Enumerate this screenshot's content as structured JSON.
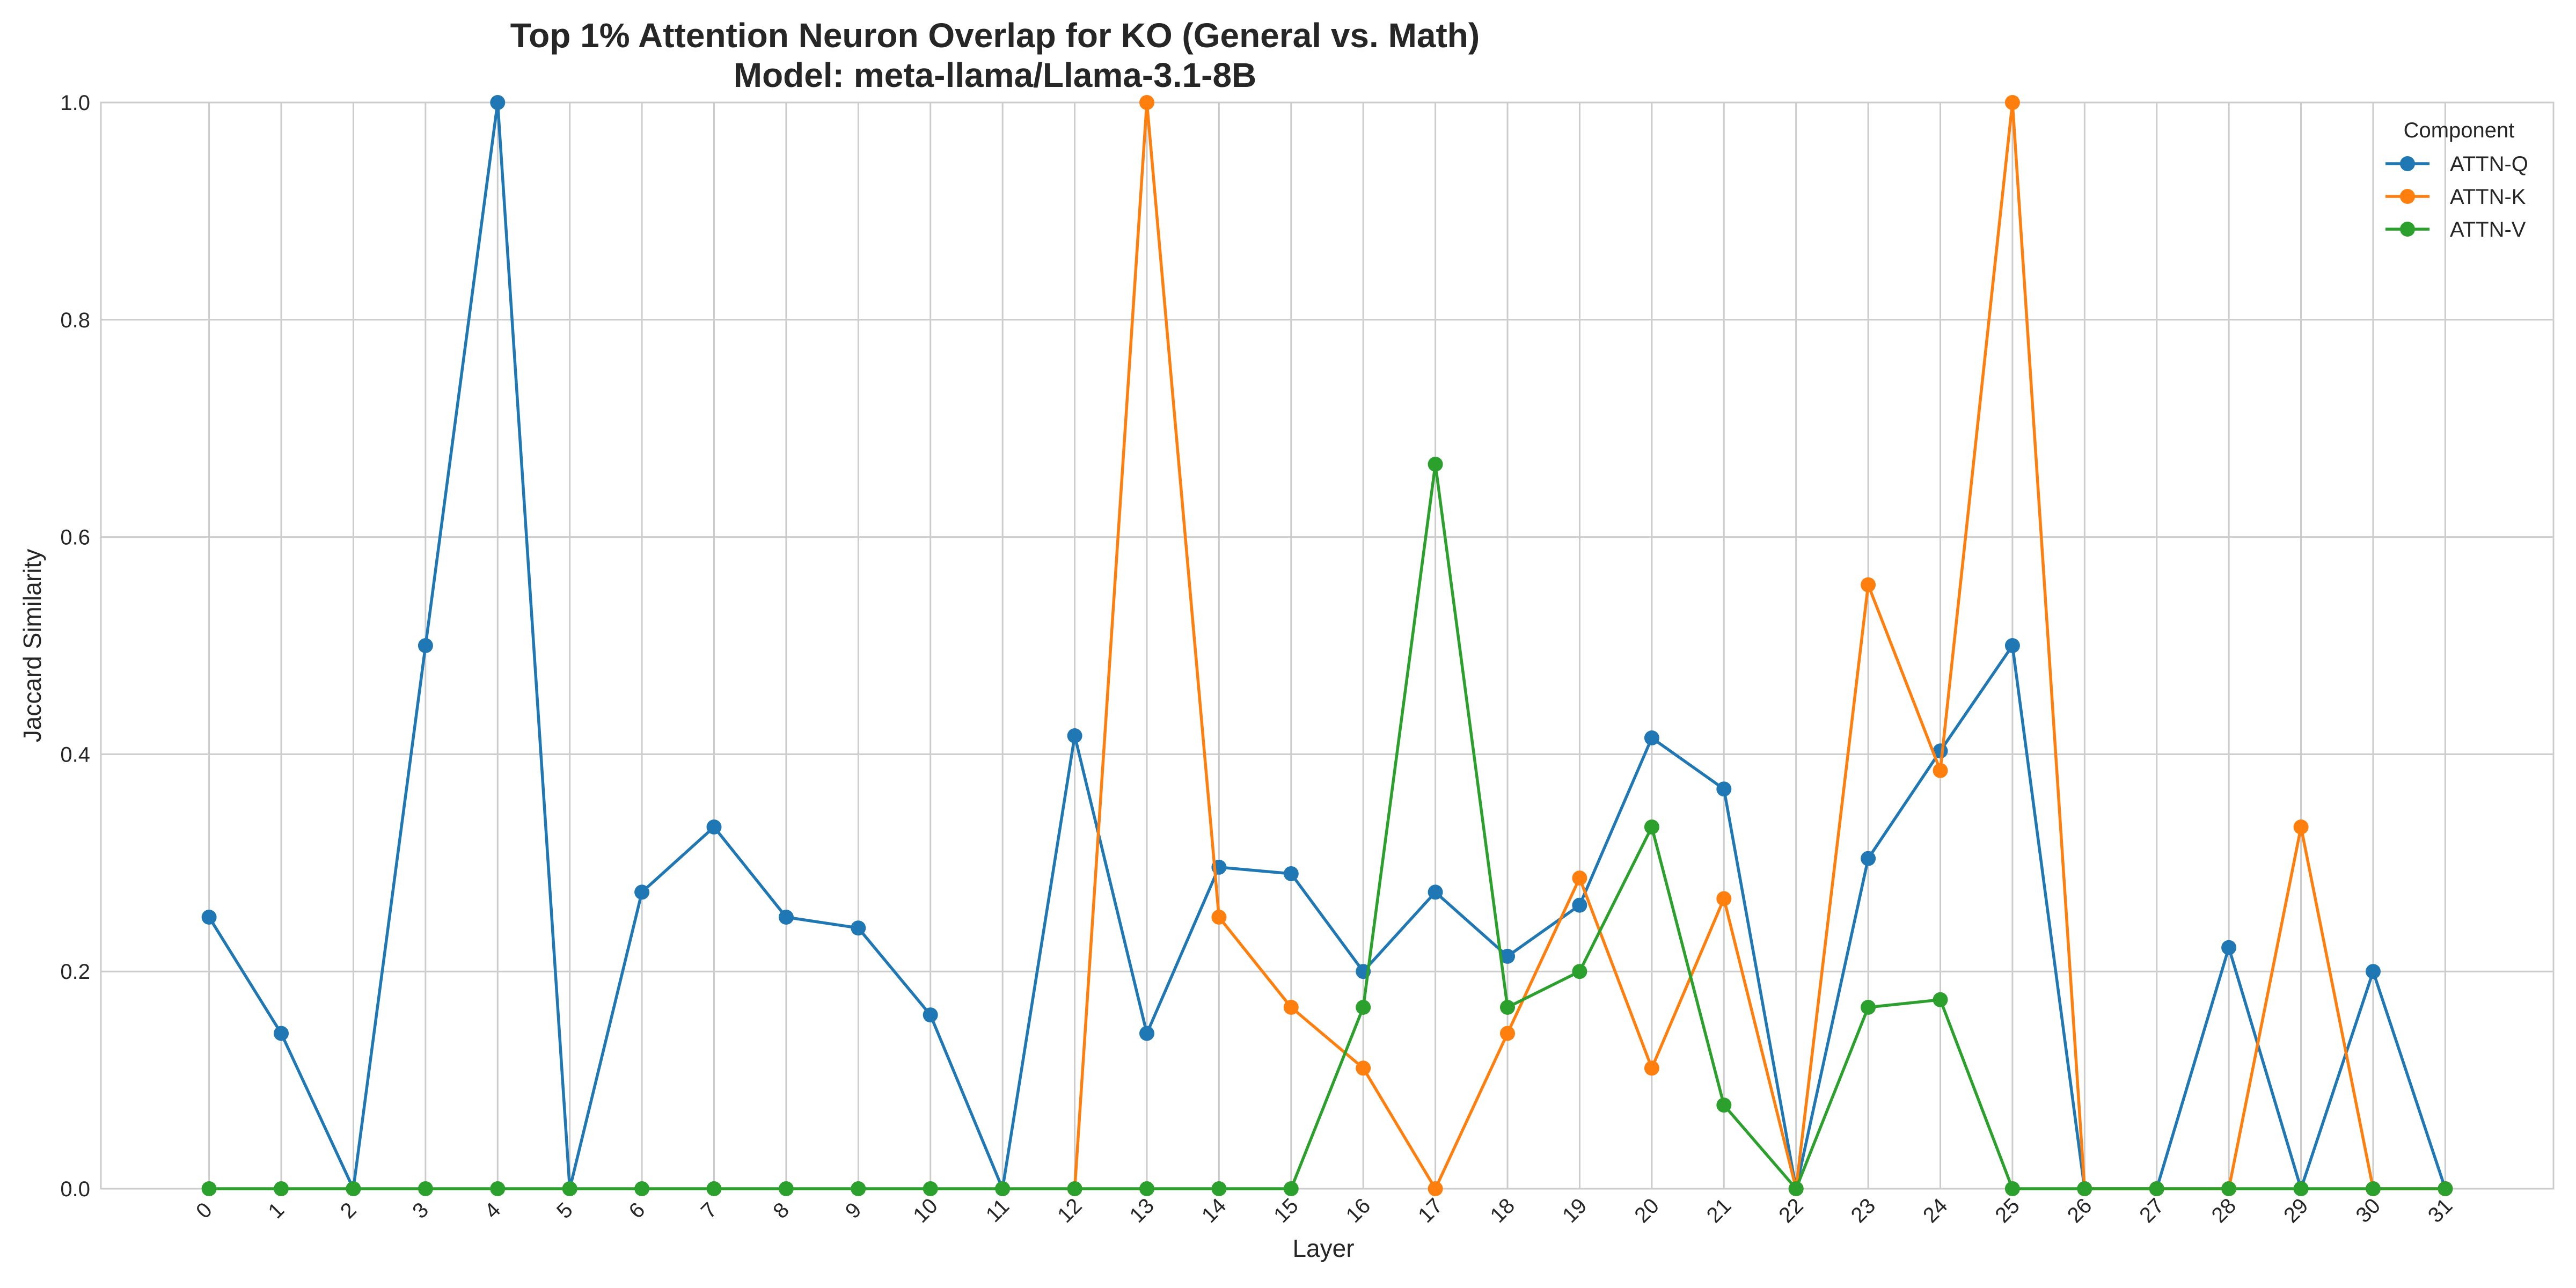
{
  "chart_data": {
    "type": "line",
    "title": "Top 1% Attention Neuron Overlap for KO (General vs. Math)",
    "subtitle": "Model: meta-llama/Llama-3.1-8B",
    "xlabel": "Layer",
    "ylabel": "Jaccard Similarity",
    "ylim": [
      0,
      1
    ],
    "yticks": [
      "0.0",
      "0.2",
      "0.4",
      "0.6",
      "0.8",
      "1.0"
    ],
    "x": [
      0,
      1,
      2,
      3,
      4,
      5,
      6,
      7,
      8,
      9,
      10,
      11,
      12,
      13,
      14,
      15,
      16,
      17,
      18,
      19,
      20,
      21,
      22,
      23,
      24,
      25,
      26,
      27,
      28,
      29,
      30,
      31
    ],
    "grid": true,
    "legend": {
      "title": "Component",
      "placement": "top-right"
    },
    "series": [
      {
        "name": "ATTN-Q",
        "color": "#1f77b4",
        "values": [
          0.25,
          0.143,
          0.0,
          0.5,
          1.0,
          0.0,
          0.273,
          0.333,
          0.25,
          0.24,
          0.16,
          0.0,
          0.417,
          0.143,
          0.296,
          0.29,
          0.2,
          0.273,
          0.214,
          0.261,
          0.415,
          0.368,
          0.0,
          0.304,
          0.403,
          0.5,
          0.0,
          0.0,
          0.222,
          0.0,
          0.2,
          0.0
        ]
      },
      {
        "name": "ATTN-K",
        "color": "#ff7f0e",
        "values": [
          null,
          null,
          null,
          null,
          null,
          null,
          null,
          null,
          null,
          null,
          null,
          null,
          0.0,
          1.0,
          0.25,
          0.167,
          0.111,
          0.0,
          0.143,
          0.286,
          0.111,
          0.267,
          0.0,
          0.556,
          0.385,
          1.0,
          0.0,
          0.0,
          0.0,
          0.333,
          0.0,
          0.0
        ]
      },
      {
        "name": "ATTN-V",
        "color": "#2ca02c",
        "values": [
          0.0,
          0.0,
          0.0,
          0.0,
          0.0,
          0.0,
          0.0,
          0.0,
          0.0,
          0.0,
          0.0,
          0.0,
          0.0,
          0.0,
          0.0,
          0.0,
          0.167,
          0.667,
          0.167,
          0.2,
          0.333,
          0.077,
          0.0,
          0.167,
          0.174,
          0.0,
          0.0,
          0.0,
          0.0,
          0.0,
          0.0,
          0.0
        ]
      }
    ]
  }
}
